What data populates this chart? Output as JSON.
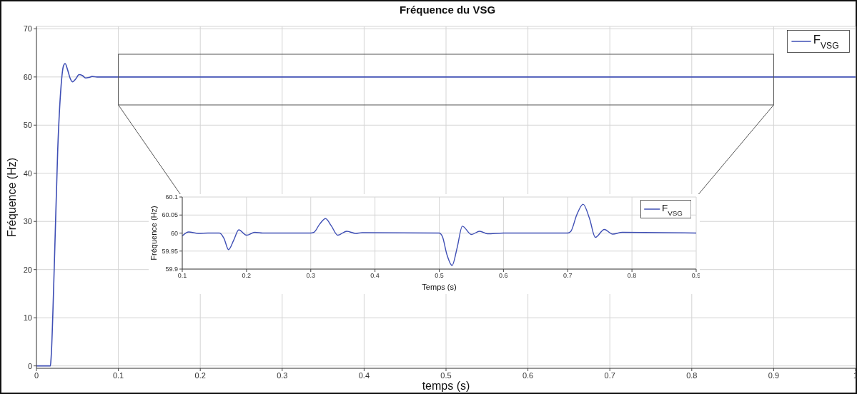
{
  "chart_data": [
    {
      "type": "line",
      "title": "Fréquence du VSG",
      "xlabel": "temps (s)",
      "ylabel": "Fréquence (Hz)",
      "xlim": [
        0,
        1
      ],
      "xticks": [
        0,
        0.1,
        0.2,
        0.3,
        0.4,
        0.5,
        0.6,
        0.7,
        0.8,
        0.9,
        1
      ],
      "ylim": [
        -0.5,
        70.5
      ],
      "yticks": [
        0,
        10,
        20,
        30,
        40,
        50,
        60,
        70
      ],
      "grid": true,
      "legend": "top right",
      "series": [
        {
          "name": "F$_{VSG}$",
          "color": "#3f4fb5",
          "x": [
            0,
            0.017,
            0.018,
            0.022,
            0.026,
            0.03,
            0.033,
            0.035,
            0.038,
            0.041,
            0.044,
            0.048,
            0.052,
            0.056,
            0.06,
            0.064,
            0.068,
            0.074,
            0.1,
            0.2,
            0.3,
            0.4,
            0.5,
            0.6,
            0.7,
            0.8,
            0.9,
            1
          ],
          "values": [
            0,
            0,
            2,
            22,
            45,
            58,
            62.3,
            62.8,
            61.5,
            59.8,
            59,
            59.6,
            60.5,
            60.3,
            59.8,
            59.9,
            60.1,
            60,
            60,
            60,
            60,
            60,
            60,
            60,
            60,
            60,
            60,
            60
          ]
        }
      ]
    },
    {
      "type": "line",
      "xlabel": "Temps (s)",
      "ylabel": "Fréquence (Hz)",
      "xlim": [
        0.1,
        0.9
      ],
      "xticks": [
        0.1,
        0.2,
        0.3,
        0.4,
        0.5,
        0.6,
        0.7,
        0.8,
        0.9
      ],
      "ylim": [
        59.9,
        60.1
      ],
      "yticks": [
        59.9,
        59.95,
        60,
        60.05,
        60.1
      ],
      "grid": true,
      "legend": "top right",
      "series": [
        {
          "name": "F$_{VSG}$",
          "color": "#3f4fb5",
          "x": [
            0.1,
            0.11,
            0.125,
            0.14,
            0.158,
            0.165,
            0.172,
            0.18,
            0.188,
            0.2,
            0.213,
            0.225,
            0.3,
            0.305,
            0.314,
            0.323,
            0.332,
            0.342,
            0.356,
            0.37,
            0.38,
            0.5,
            0.505,
            0.512,
            0.52,
            0.528,
            0.536,
            0.55,
            0.563,
            0.575,
            0.6,
            0.7,
            0.705,
            0.714,
            0.724,
            0.734,
            0.743,
            0.757,
            0.77,
            0.785,
            0.9
          ],
          "values": [
            59.992,
            60.003,
            59.999,
            60,
            60,
            59.985,
            59.954,
            59.98,
            60.009,
            59.994,
            60.002,
            60,
            60,
            60.002,
            60.025,
            60.04,
            60.02,
            59.994,
            60.005,
            59.999,
            60.001,
            60,
            59.99,
            59.94,
            59.91,
            59.96,
            60.019,
            59.996,
            60.005,
            59.998,
            60,
            60,
            60.005,
            60.05,
            60.08,
            60.04,
            59.988,
            60.01,
            59.997,
            60.002,
            60
          ]
        }
      ]
    }
  ]
}
